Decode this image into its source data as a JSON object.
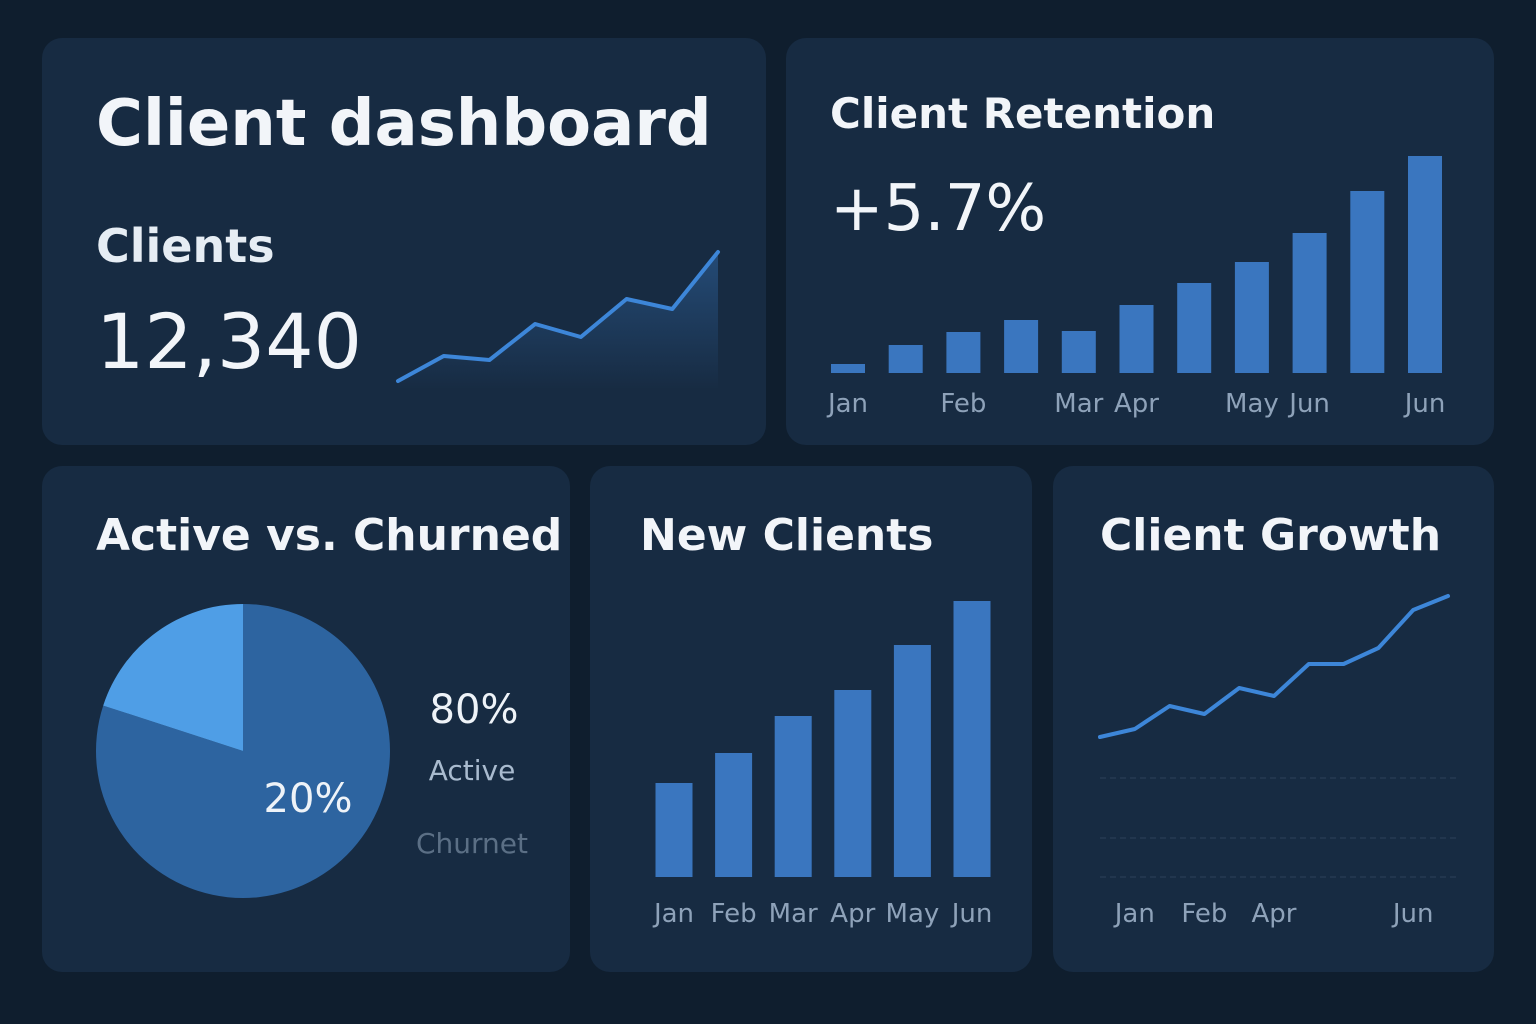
{
  "chart_data": [
    {
      "type": "sparkline",
      "title": "Client dashboard",
      "subtitle": "Clients",
      "annotation": "12,340",
      "values": [
        9,
        34,
        30,
        66,
        53,
        91,
        81,
        138
      ],
      "color": "#3d86d8"
    },
    {
      "type": "bar",
      "title": "Client Retention",
      "annotation": "+5.7%",
      "categories": [
        "Jan",
        null,
        "Feb",
        null,
        "Mar",
        "Apr",
        null,
        "May",
        "Jun",
        null,
        "Jun"
      ],
      "values": [
        9,
        28,
        41,
        53,
        42,
        68,
        90,
        111,
        140,
        182,
        217
      ],
      "color": "#3a76bf"
    },
    {
      "type": "pie",
      "title": "Active vs. Churned",
      "categories": [
        "Active",
        "Churnet"
      ],
      "values": [
        80,
        20
      ],
      "value_labels": [
        "80%",
        "20%"
      ],
      "colors": [
        "#2d64a0",
        "#4f9ee6"
      ]
    },
    {
      "type": "bar",
      "title": "New Clients",
      "categories": [
        "Jan",
        "Feb",
        "Mar",
        "Apr",
        "May",
        "Jun"
      ],
      "values": [
        94,
        124,
        161,
        187,
        232,
        276
      ],
      "color": "#3a76bf"
    },
    {
      "type": "line",
      "title": "Client Growth",
      "categories": [
        null,
        "Jan",
        null,
        "Feb",
        null,
        "Apr",
        null,
        null,
        null,
        "Jun",
        null
      ],
      "values": [
        140,
        148,
        171,
        163,
        189,
        181,
        213,
        213,
        229,
        267,
        281
      ],
      "color": "#3d86d8"
    }
  ]
}
